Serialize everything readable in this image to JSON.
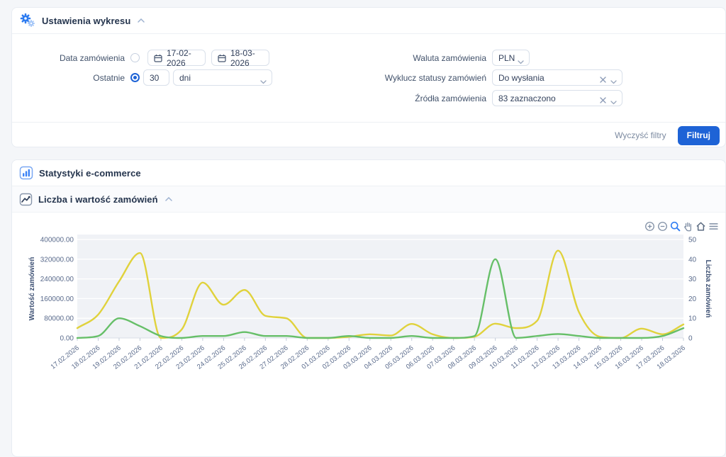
{
  "filters_panel": {
    "title": "Ustawienia wykresu",
    "order_date": {
      "label": "Data zamówienia",
      "date_from": "17-02-2026",
      "date_to": "18-03-2026"
    },
    "last": {
      "label": "Ostatnie",
      "value": "30",
      "unit": "dni"
    },
    "currency": {
      "label": "Waluta zamówienia",
      "value": "PLN"
    },
    "exclude_statuses": {
      "label": "Wyklucz statusy zamówień",
      "value": "Do wysłania"
    },
    "sources": {
      "label": "Źródła zamówienia",
      "value": "83 zaznaczono"
    },
    "clear_label": "Wyczyść filtry",
    "submit_label": "Filtruj"
  },
  "stats_section": {
    "title": "Statystyki e-commerce",
    "chart_section_title": "Liczba i wartość zamówień"
  },
  "modebar_icons": [
    "zoom-in",
    "zoom-out",
    "zoom-select",
    "pan",
    "reset-home",
    "menu"
  ],
  "colors": {
    "accent": "#1e63d6",
    "value_line": "#e0d23c",
    "count_line": "#66bf68",
    "plot_bg": "#f0f2f6"
  },
  "chart_data": {
    "type": "line",
    "title": "Liczba i wartość zamówień",
    "x": [
      "17.02.2026",
      "18.02.2026",
      "19.02.2026",
      "20.02.2026",
      "21.02.2026",
      "22.02.2026",
      "23.02.2026",
      "24.02.2026",
      "25.02.2026",
      "26.02.2026",
      "27.02.2026",
      "28.02.2026",
      "01.03.2026",
      "02.03.2026",
      "03.03.2026",
      "04.03.2026",
      "05.03.2026",
      "06.03.2026",
      "07.03.2026",
      "08.03.2026",
      "09.03.2026",
      "10.03.2026",
      "11.03.2026",
      "12.03.2026",
      "13.03.2026",
      "14.03.2026",
      "15.03.2026",
      "16.03.2026",
      "17.03.2026",
      "18.03.2026"
    ],
    "series": [
      {
        "name": "Wartość zamówień",
        "axis": "left",
        "color": "#e0d23c",
        "values": [
          40000,
          95000,
          230000,
          345000,
          0,
          35000,
          225000,
          135000,
          195000,
          90000,
          80000,
          0,
          0,
          5000,
          15000,
          10000,
          57000,
          15000,
          0,
          5000,
          58000,
          40000,
          70000,
          355000,
          105000,
          5000,
          0,
          38000,
          15000,
          55000
        ]
      },
      {
        "name": "Liczba zamówień",
        "axis": "right",
        "color": "#66bf68",
        "values": [
          0,
          1,
          10,
          6,
          1,
          0,
          1,
          1,
          3,
          1,
          1,
          0,
          0,
          1,
          0,
          0,
          1,
          0,
          0,
          1,
          40,
          0,
          1,
          2,
          1,
          0,
          0,
          0,
          1,
          5
        ]
      }
    ],
    "left_axis": {
      "label": "Wartość zamówień",
      "range": [
        0,
        400000
      ],
      "ticks": [
        "0.00",
        "80000.00",
        "160000.00",
        "240000.00",
        "320000.00",
        "400000.00"
      ]
    },
    "right_axis": {
      "label": "Liczba zamówień",
      "range": [
        0,
        50
      ],
      "ticks": [
        "0",
        "10",
        "20",
        "30",
        "40",
        "50"
      ]
    },
    "grid": true,
    "legend": "none"
  }
}
